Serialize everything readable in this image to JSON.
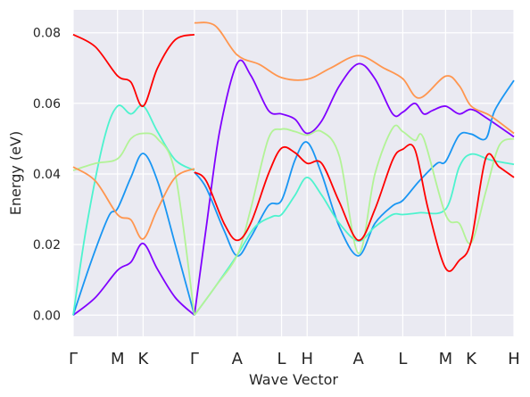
{
  "chart_data": {
    "type": "line",
    "title": "",
    "xlabel": "Wave Vector",
    "ylabel": "Energy (eV)",
    "ylim": [
      -0.006,
      0.0865
    ],
    "yticks": [
      0.0,
      0.02,
      0.04,
      0.06,
      0.08
    ],
    "ytick_labels": [
      "0.00",
      "0.02",
      "0.04",
      "0.06",
      "0.08"
    ],
    "grid": true,
    "background": "#eaeaf2",
    "x_points": [
      {
        "label": "Γ",
        "pos": 0.0
      },
      {
        "label": "M",
        "pos": 1.0
      },
      {
        "label": "K",
        "pos": 1.577
      },
      {
        "label": "Γ",
        "pos": 2.732
      },
      {
        "label": "A",
        "pos": 3.696
      },
      {
        "label": "L",
        "pos": 4.696
      },
      {
        "label": "H",
        "pos": 5.273
      },
      {
        "label": "A",
        "pos": 6.428
      },
      {
        "label": "L",
        "pos": 7.428
      },
      {
        "label": "M",
        "pos": 8.392
      },
      {
        "label": "K",
        "pos": 8.969
      },
      {
        "label": "H",
        "pos": 9.933
      }
    ],
    "xlim": [
      0.0,
      9.933
    ],
    "series": [
      {
        "color": "#8000ff",
        "segments": [
          [
            [
              0,
              0
            ],
            [
              0.5,
              0.005
            ],
            [
              1.0,
              0.0127
            ],
            [
              1.3,
              0.015
            ],
            [
              1.577,
              0.0203
            ],
            [
              1.9,
              0.013
            ],
            [
              2.3,
              0.005
            ],
            [
              2.732,
              0
            ]
          ],
          [
            [
              2.732,
              0
            ],
            [
              3.0,
              0.025
            ],
            [
              3.3,
              0.052
            ],
            [
              3.696,
              0.0713
            ],
            [
              4.0,
              0.068
            ],
            [
              4.4,
              0.058
            ],
            [
              4.696,
              0.057
            ],
            [
              5.0,
              0.0555
            ],
            [
              5.273,
              0.0515
            ],
            [
              5.6,
              0.055
            ],
            [
              6.0,
              0.065
            ],
            [
              6.428,
              0.0712
            ],
            [
              6.8,
              0.067
            ],
            [
              7.2,
              0.057
            ],
            [
              7.428,
              0.0575
            ],
            [
              7.7,
              0.06
            ],
            [
              7.9,
              0.057
            ],
            [
              8.1,
              0.058
            ],
            [
              8.392,
              0.0592
            ],
            [
              8.7,
              0.057
            ],
            [
              8.969,
              0.0583
            ],
            [
              9.3,
              0.056
            ],
            [
              9.933,
              0.0505
            ]
          ]
        ]
      },
      {
        "color": "#1996f3",
        "segments": [
          [
            [
              0,
              0
            ],
            [
              0.4,
              0.015
            ],
            [
              0.8,
              0.028
            ],
            [
              1.0,
              0.0302
            ],
            [
              1.3,
              0.039
            ],
            [
              1.577,
              0.0458
            ],
            [
              1.9,
              0.038
            ],
            [
              2.3,
              0.02
            ],
            [
              2.732,
              0
            ]
          ],
          [
            [
              2.732,
              0.0405
            ],
            [
              3.0,
              0.036
            ],
            [
              3.4,
              0.024
            ],
            [
              3.696,
              0.0168
            ],
            [
              4.0,
              0.022
            ],
            [
              4.4,
              0.031
            ],
            [
              4.696,
              0.0325
            ],
            [
              5.0,
              0.044
            ],
            [
              5.273,
              0.049
            ],
            [
              5.6,
              0.04
            ],
            [
              6.0,
              0.025
            ],
            [
              6.428,
              0.0168
            ],
            [
              6.8,
              0.026
            ],
            [
              7.2,
              0.031
            ],
            [
              7.428,
              0.0325
            ],
            [
              7.8,
              0.038
            ],
            [
              8.2,
              0.043
            ],
            [
              8.392,
              0.0435
            ],
            [
              8.7,
              0.051
            ],
            [
              8.969,
              0.0513
            ],
            [
              9.3,
              0.05
            ],
            [
              9.5,
              0.058
            ],
            [
              9.933,
              0.0665
            ]
          ]
        ]
      },
      {
        "color": "#4df3ce",
        "segments": [
          [
            [
              0,
              0
            ],
            [
              0.3,
              0.025
            ],
            [
              0.7,
              0.05
            ],
            [
              1.0,
              0.0592
            ],
            [
              1.3,
              0.057
            ],
            [
              1.577,
              0.0593
            ],
            [
              1.9,
              0.052
            ],
            [
              2.3,
              0.044
            ],
            [
              2.732,
              0.041
            ]
          ],
          [
            [
              2.732,
              0
            ],
            [
              3.2,
              0.008
            ],
            [
              3.696,
              0.017
            ],
            [
              4.1,
              0.025
            ],
            [
              4.5,
              0.028
            ],
            [
              4.696,
              0.0285
            ],
            [
              5.0,
              0.034
            ],
            [
              5.273,
              0.039
            ],
            [
              5.6,
              0.034
            ],
            [
              6.0,
              0.026
            ],
            [
              6.428,
              0.021
            ],
            [
              6.8,
              0.025
            ],
            [
              7.2,
              0.0285
            ],
            [
              7.428,
              0.0285
            ],
            [
              7.8,
              0.029
            ],
            [
              8.392,
              0.03
            ],
            [
              8.7,
              0.042
            ],
            [
              8.969,
              0.0456
            ],
            [
              9.4,
              0.044
            ],
            [
              9.933,
              0.0427
            ]
          ]
        ]
      },
      {
        "color": "#b2f396",
        "segments": [
          [
            [
              0,
              0.041
            ],
            [
              0.5,
              0.043
            ],
            [
              1.0,
              0.0443
            ],
            [
              1.3,
              0.05
            ],
            [
              1.577,
              0.0515
            ],
            [
              1.9,
              0.05
            ],
            [
              2.3,
              0.04
            ],
            [
              2.732,
              0
            ]
          ],
          [
            [
              2.732,
              0
            ],
            [
              3.2,
              0.008
            ],
            [
              3.696,
              0.017
            ],
            [
              4.0,
              0.03
            ],
            [
              4.4,
              0.05
            ],
            [
              4.696,
              0.0527
            ],
            [
              5.0,
              0.052
            ],
            [
              5.273,
              0.051
            ],
            [
              5.6,
              0.052
            ],
            [
              6.0,
              0.045
            ],
            [
              6.428,
              0.0175
            ],
            [
              6.8,
              0.04
            ],
            [
              7.2,
              0.053
            ],
            [
              7.428,
              0.052
            ],
            [
              7.7,
              0.0495
            ],
            [
              7.9,
              0.05
            ],
            [
              8.392,
              0.0285
            ],
            [
              8.7,
              0.026
            ],
            [
              8.969,
              0.0205
            ],
            [
              9.3,
              0.035
            ],
            [
              9.6,
              0.048
            ],
            [
              9.933,
              0.05
            ]
          ]
        ]
      },
      {
        "color": "#ff964f",
        "segments": [
          [
            [
              0,
              0.042
            ],
            [
              0.5,
              0.038
            ],
            [
              1.0,
              0.0285
            ],
            [
              1.3,
              0.027
            ],
            [
              1.577,
              0.0216
            ],
            [
              1.9,
              0.03
            ],
            [
              2.3,
              0.039
            ],
            [
              2.732,
              0.0415
            ]
          ],
          [
            [
              2.732,
              0.0828
            ],
            [
              3.2,
              0.082
            ],
            [
              3.696,
              0.0737
            ],
            [
              4.2,
              0.071
            ],
            [
              4.696,
              0.0673
            ],
            [
              5.273,
              0.0668
            ],
            [
              5.8,
              0.07
            ],
            [
              6.428,
              0.0735
            ],
            [
              7.0,
              0.07
            ],
            [
              7.428,
              0.067
            ],
            [
              7.8,
              0.0615
            ],
            [
              8.392,
              0.0677
            ],
            [
              8.7,
              0.065
            ],
            [
              8.969,
              0.0592
            ],
            [
              9.4,
              0.0565
            ],
            [
              9.933,
              0.0515
            ]
          ]
        ]
      },
      {
        "color": "#ff0000",
        "segments": [
          [
            [
              0,
              0.0795
            ],
            [
              0.5,
              0.076
            ],
            [
              1.0,
              0.0678
            ],
            [
              1.3,
              0.066
            ],
            [
              1.577,
              0.0592
            ],
            [
              1.9,
              0.07
            ],
            [
              2.3,
              0.078
            ],
            [
              2.732,
              0.0795
            ]
          ],
          [
            [
              2.732,
              0.0405
            ],
            [
              3.0,
              0.038
            ],
            [
              3.4,
              0.026
            ],
            [
              3.696,
              0.0212
            ],
            [
              4.0,
              0.026
            ],
            [
              4.4,
              0.04
            ],
            [
              4.696,
              0.0473
            ],
            [
              5.0,
              0.046
            ],
            [
              5.273,
              0.043
            ],
            [
              5.6,
              0.043
            ],
            [
              6.0,
              0.032
            ],
            [
              6.428,
              0.0212
            ],
            [
              6.8,
              0.03
            ],
            [
              7.2,
              0.044
            ],
            [
              7.428,
              0.047
            ],
            [
              7.7,
              0.047
            ],
            [
              8.0,
              0.03
            ],
            [
              8.392,
              0.0133
            ],
            [
              8.7,
              0.0155
            ],
            [
              8.969,
              0.021
            ],
            [
              9.3,
              0.0445
            ],
            [
              9.6,
              0.042
            ],
            [
              9.933,
              0.039
            ]
          ]
        ]
      }
    ]
  }
}
